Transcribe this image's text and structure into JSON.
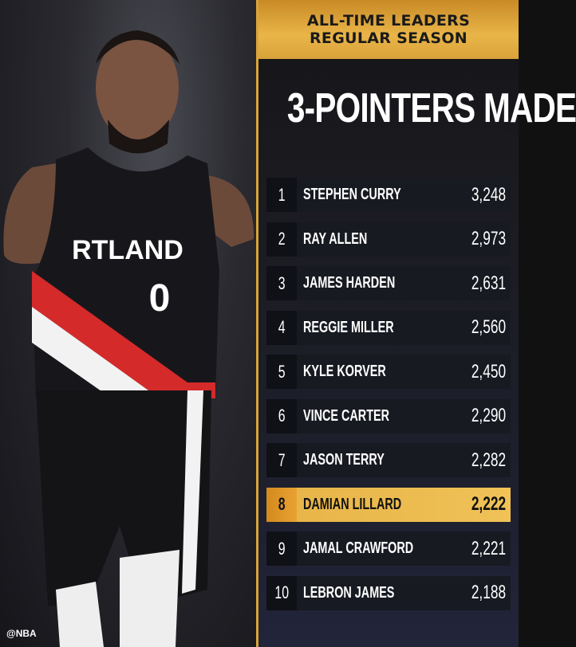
{
  "header": {
    "line1": "ALL-TIME LEADERS",
    "line2": "REGULAR SEASON"
  },
  "title": "3-POINTERS MADE",
  "jersey_text": "RTLAND",
  "jersey_number": "0",
  "watermark": "@NBA",
  "highlight_color": "#e9b548",
  "leaders": [
    {
      "rank": "1",
      "name": "STEPHEN CURRY",
      "value": "3,248"
    },
    {
      "rank": "2",
      "name": "RAY ALLEN",
      "value": "2,973"
    },
    {
      "rank": "3",
      "name": "JAMES HARDEN",
      "value": "2,631"
    },
    {
      "rank": "4",
      "name": "REGGIE MILLER",
      "value": "2,560"
    },
    {
      "rank": "5",
      "name": "KYLE KORVER",
      "value": "2,450"
    },
    {
      "rank": "6",
      "name": "VINCE CARTER",
      "value": "2,290"
    },
    {
      "rank": "7",
      "name": "JASON TERRY",
      "value": "2,282"
    },
    {
      "rank": "8",
      "name": "DAMIAN LILLARD",
      "value": "2,222",
      "highlighted": true
    },
    {
      "rank": "9",
      "name": "JAMAL CRAWFORD",
      "value": "2,221"
    },
    {
      "rank": "10",
      "name": "LEBRON JAMES",
      "value": "2,188"
    }
  ]
}
